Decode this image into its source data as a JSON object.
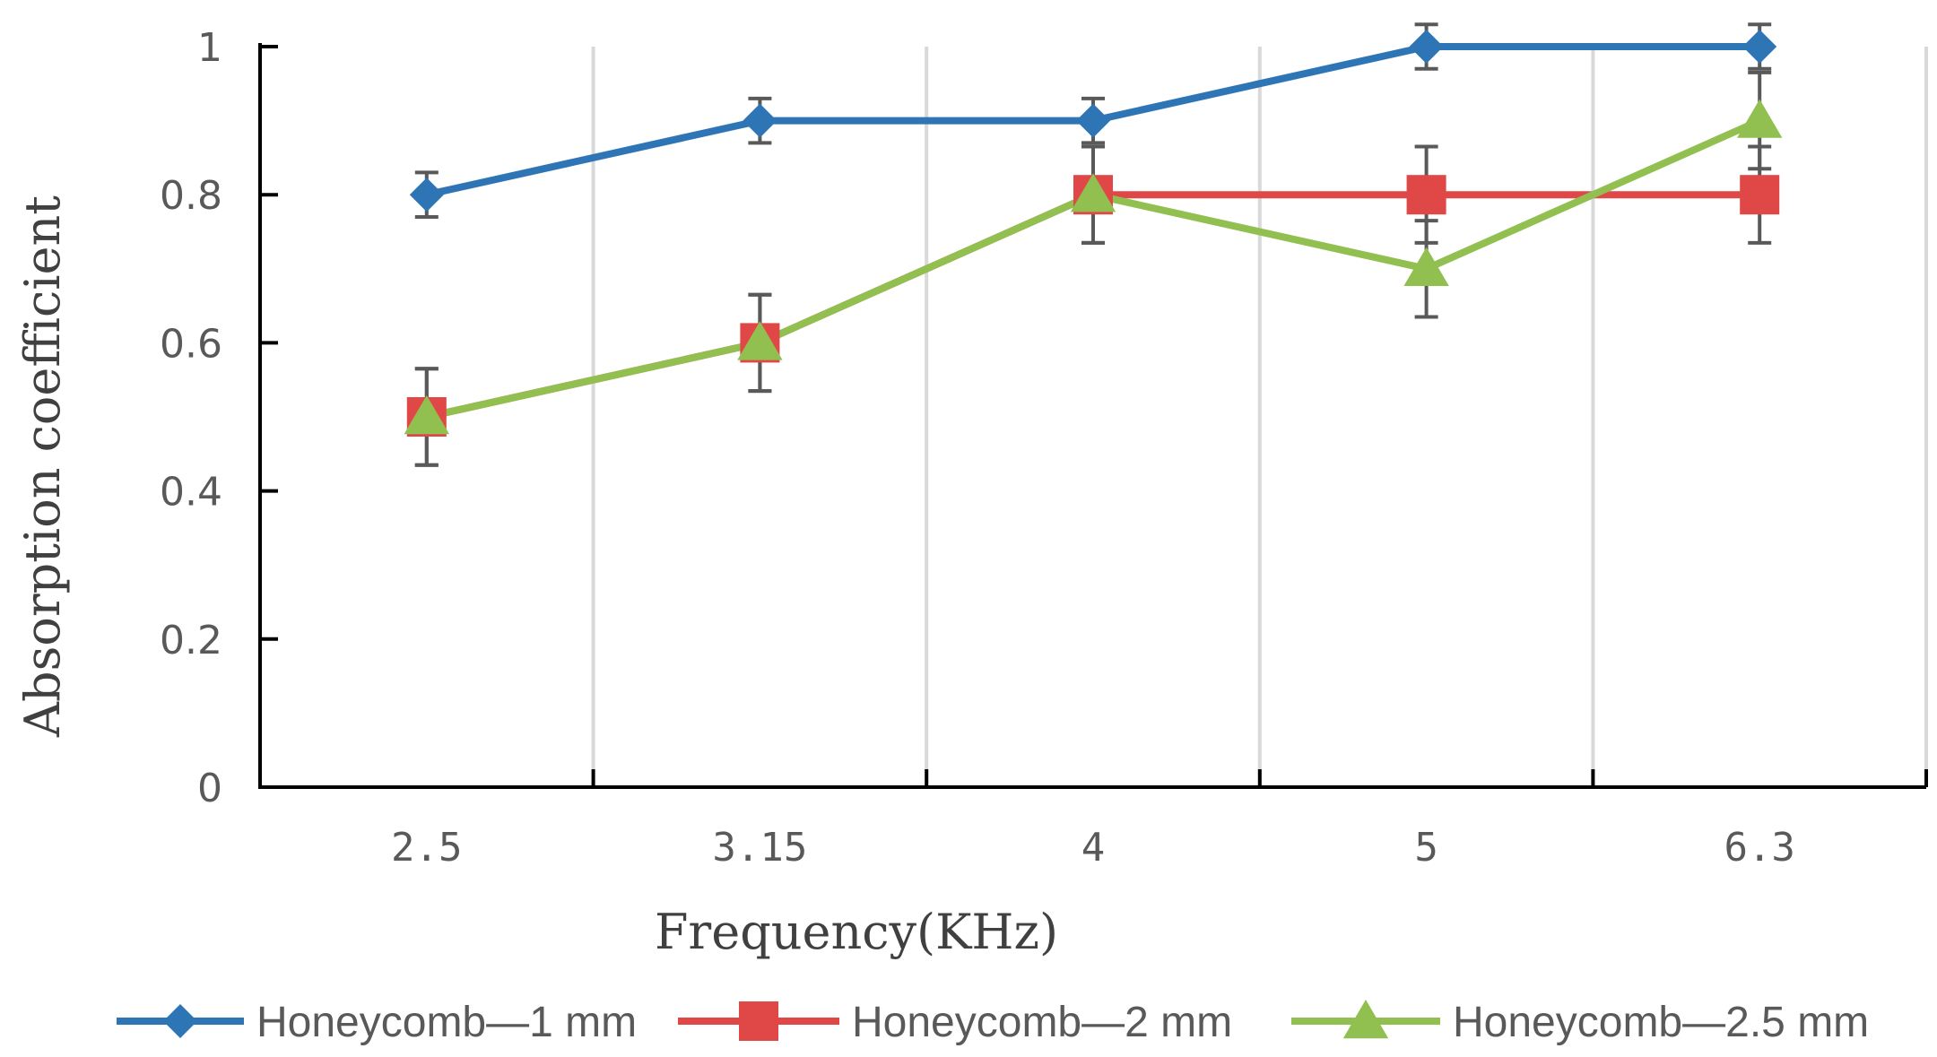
{
  "chart_data": {
    "type": "line",
    "title": "",
    "xlabel": "Frequency(KHz)",
    "ylabel": "Absorption coefficient",
    "categories": [
      "2.5",
      "3.15",
      "4",
      "5",
      "6.3"
    ],
    "ylim": [
      0,
      1
    ],
    "yticks": [
      "0",
      "0.2",
      "0.4",
      "0.6",
      "0.8",
      "1"
    ],
    "grid": "vertical",
    "legend_position": "bottom",
    "series": [
      {
        "name": "Honeycomb—1 mm",
        "values": [
          0.8,
          0.9,
          0.9,
          1.0,
          1.0
        ],
        "error": [
          0.03,
          0.03,
          0.03,
          0.03,
          0.03
        ],
        "color": "#2E75B6",
        "marker": "diamond"
      },
      {
        "name": "Honeycomb—2 mm",
        "values": [
          0.5,
          0.6,
          0.8,
          0.8,
          0.8
        ],
        "error": [
          0.065,
          0.065,
          0.065,
          0.065,
          0.065
        ],
        "color": "#E04848",
        "marker": "square"
      },
      {
        "name": "Honeycomb—2.5 mm",
        "values": [
          0.5,
          0.6,
          0.8,
          0.7,
          0.9
        ],
        "error": [
          0.065,
          0.065,
          0.065,
          0.065,
          0.065
        ],
        "color": "#92C050",
        "marker": "triangle"
      }
    ]
  }
}
